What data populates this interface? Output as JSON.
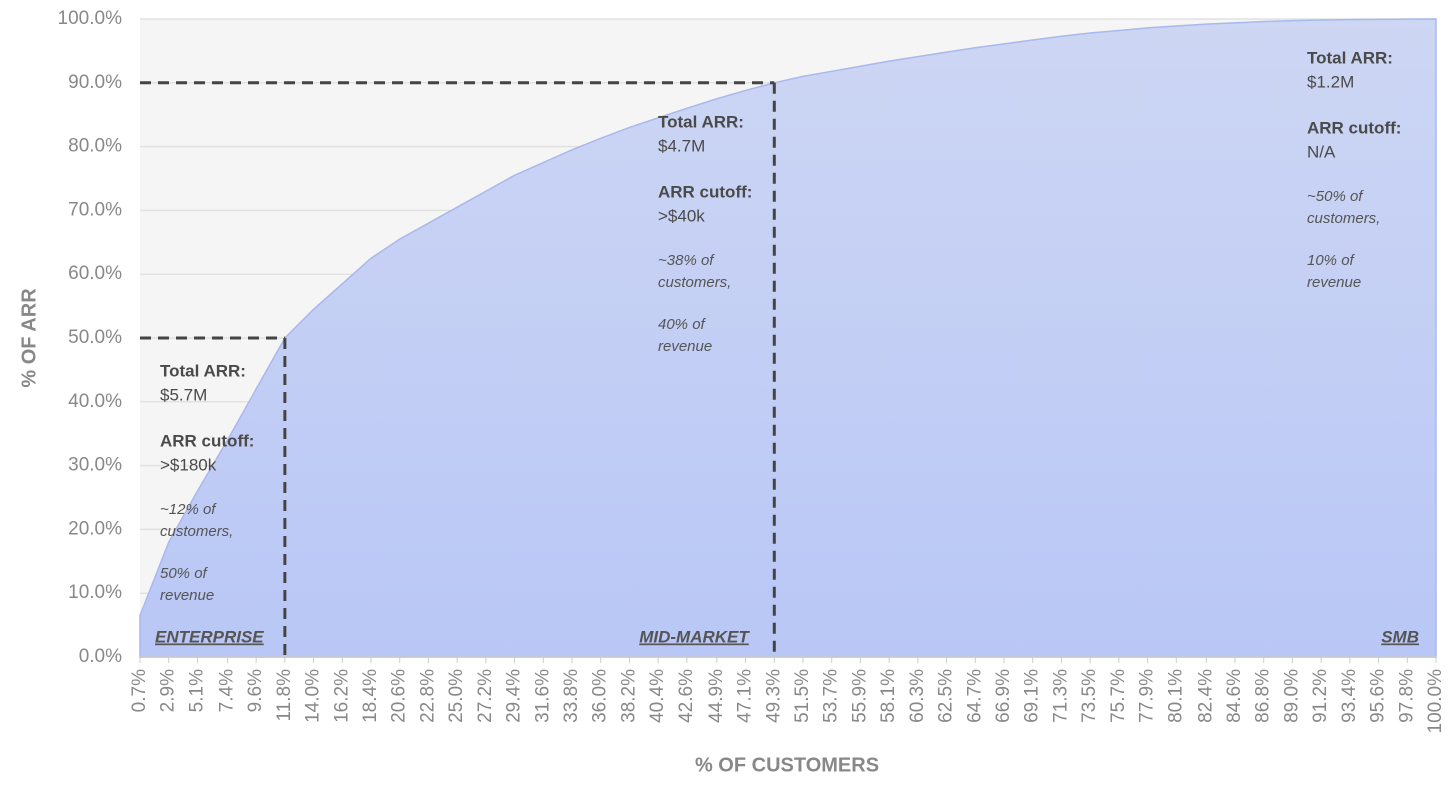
{
  "chart_data": {
    "type": "area",
    "x_label": "% OF CUSTOMERS",
    "y_label": "% OF ARR",
    "x": [
      0.7,
      2.9,
      5.1,
      7.4,
      9.6,
      11.8,
      14.0,
      16.2,
      18.4,
      20.6,
      22.8,
      25.0,
      27.2,
      29.4,
      31.6,
      33.8,
      36.0,
      38.2,
      40.4,
      42.6,
      44.9,
      47.1,
      49.3,
      51.5,
      53.7,
      55.9,
      58.1,
      60.3,
      62.5,
      64.7,
      66.9,
      69.1,
      71.3,
      73.5,
      75.7,
      77.9,
      80.1,
      82.4,
      84.6,
      86.8,
      89.0,
      91.2,
      93.4,
      95.6,
      97.8,
      100.0
    ],
    "values": [
      6.5,
      18,
      26,
      34,
      42,
      50,
      54.5,
      58.5,
      62.5,
      65.5,
      68,
      70.5,
      73,
      75.5,
      77.5,
      79.5,
      81.3,
      83,
      84.5,
      86,
      87.5,
      88.8,
      90,
      91,
      91.8,
      92.6,
      93.4,
      94.1,
      94.8,
      95.5,
      96.1,
      96.7,
      97.3,
      97.8,
      98.2,
      98.6,
      98.9,
      99.2,
      99.4,
      99.6,
      99.75,
      99.85,
      99.9,
      99.95,
      99.98,
      100
    ],
    "color": "#a9b8ee",
    "xlim": [
      0.7,
      100.0
    ],
    "ylim": [
      0,
      100
    ],
    "xticks": [
      {
        "value": 0.7,
        "label": "0.7%"
      },
      {
        "value": 2.9,
        "label": "2.9%"
      },
      {
        "value": 5.1,
        "label": "5.1%"
      },
      {
        "value": 7.4,
        "label": "7.4%"
      },
      {
        "value": 9.6,
        "label": "9.6%"
      },
      {
        "value": 11.8,
        "label": "11.8%"
      },
      {
        "value": 14.0,
        "label": "14.0%"
      },
      {
        "value": 16.2,
        "label": "16.2%"
      },
      {
        "value": 18.4,
        "label": "18.4%"
      },
      {
        "value": 20.6,
        "label": "20.6%"
      },
      {
        "value": 22.8,
        "label": "22.8%"
      },
      {
        "value": 25.0,
        "label": "25.0%"
      },
      {
        "value": 27.2,
        "label": "27.2%"
      },
      {
        "value": 29.4,
        "label": "29.4%"
      },
      {
        "value": 31.6,
        "label": "31.6%"
      },
      {
        "value": 33.8,
        "label": "33.8%"
      },
      {
        "value": 36.0,
        "label": "36.0%"
      },
      {
        "value": 38.2,
        "label": "38.2%"
      },
      {
        "value": 40.4,
        "label": "40.4%"
      },
      {
        "value": 42.6,
        "label": "42.6%"
      },
      {
        "value": 44.9,
        "label": "44.9%"
      },
      {
        "value": 47.1,
        "label": "47.1%"
      },
      {
        "value": 49.3,
        "label": "49.3%"
      },
      {
        "value": 51.5,
        "label": "51.5%"
      },
      {
        "value": 53.7,
        "label": "53.7%"
      },
      {
        "value": 55.9,
        "label": "55.9%"
      },
      {
        "value": 58.1,
        "label": "58.1%"
      },
      {
        "value": 60.3,
        "label": "60.3%"
      },
      {
        "value": 62.5,
        "label": "62.5%"
      },
      {
        "value": 64.7,
        "label": "64.7%"
      },
      {
        "value": 66.9,
        "label": "66.9%"
      },
      {
        "value": 69.1,
        "label": "69.1%"
      },
      {
        "value": 71.3,
        "label": "71.3%"
      },
      {
        "value": 73.5,
        "label": "73.5%"
      },
      {
        "value": 75.7,
        "label": "75.7%"
      },
      {
        "value": 77.9,
        "label": "77.9%"
      },
      {
        "value": 80.1,
        "label": "80.1%"
      },
      {
        "value": 82.4,
        "label": "82.4%"
      },
      {
        "value": 84.6,
        "label": "84.6%"
      },
      {
        "value": 86.8,
        "label": "86.8%"
      },
      {
        "value": 89.0,
        "label": "89.0%"
      },
      {
        "value": 91.2,
        "label": "91.2%"
      },
      {
        "value": 93.4,
        "label": "93.4%"
      },
      {
        "value": 95.6,
        "label": "95.6%"
      },
      {
        "value": 97.8,
        "label": "97.8%"
      },
      {
        "value": 100.0,
        "label": "100.0%"
      }
    ],
    "yticks": [
      {
        "value": 0,
        "label": "0.0%"
      },
      {
        "value": 10,
        "label": "10.0%"
      },
      {
        "value": 20,
        "label": "20.0%"
      },
      {
        "value": 30,
        "label": "30.0%"
      },
      {
        "value": 40,
        "label": "40.0%"
      },
      {
        "value": 50,
        "label": "50.0%"
      },
      {
        "value": 60,
        "label": "60.0%"
      },
      {
        "value": 70,
        "label": "70.0%"
      },
      {
        "value": 80,
        "label": "80.0%"
      },
      {
        "value": 90,
        "label": "90.0%"
      },
      {
        "value": 100,
        "label": "100.0%"
      }
    ],
    "grid": true,
    "reference_lines": [
      {
        "x": 11.8,
        "y": 50
      },
      {
        "x": 49.3,
        "y": 90
      }
    ],
    "segments": [
      {
        "name": "ENTERPRISE",
        "total_label": "Total ARR:",
        "total": "$5.7M",
        "cutoff_label": "ARR cutoff:",
        "cutoff": ">$180k",
        "notes": [
          "~12% of",
          "customers,",
          "50% of",
          "revenue"
        ]
      },
      {
        "name": "MID-MARKET",
        "total_label": "Total ARR:",
        "total": "$4.7M",
        "cutoff_label": "ARR cutoff:",
        "cutoff": ">$40k",
        "notes": [
          "~38% of",
          "customers,",
          "40% of",
          "revenue"
        ]
      },
      {
        "name": "SMB",
        "total_label": "Total ARR:",
        "total": "$1.2M",
        "cutoff_label": "ARR cutoff:",
        "cutoff": "N/A",
        "notes": [
          "~50% of",
          "customers,",
          "10% of",
          "revenue"
        ]
      }
    ]
  }
}
